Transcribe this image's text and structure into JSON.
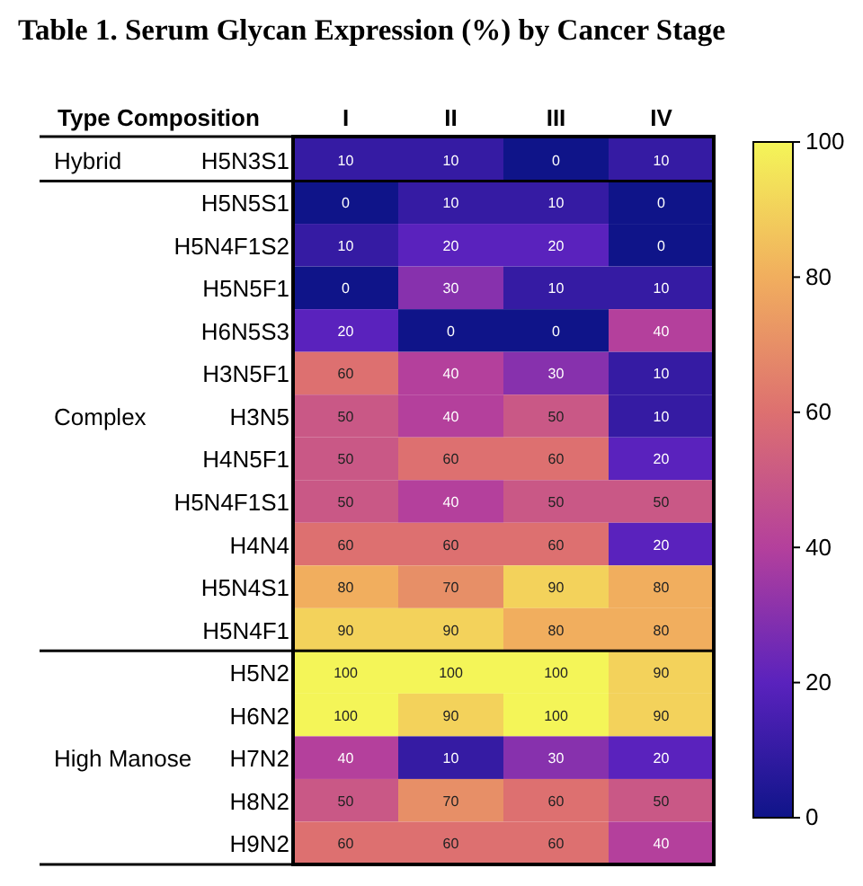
{
  "chart_data": {
    "type": "heatmap",
    "title": "Table 1. Serum Glycan Expression (%) by Cancer Stage",
    "ylabel": "Type Composition",
    "categories": [
      "I",
      "II",
      "III",
      "IV"
    ],
    "y_categories": [
      "H5N3S1",
      "H5N5S1",
      "H5N4F1S2",
      "H5N5F1",
      "H6N5S3",
      "H3N5F1",
      "H3N5",
      "H4N5F1",
      "H5N4F1S1",
      "H4N4",
      "H5N4S1",
      "H5N4F1",
      "H5N2",
      "H6N2",
      "H7N2",
      "H8N2",
      "H9N2"
    ],
    "cells": [
      [
        10,
        10,
        0,
        10
      ],
      [
        0,
        10,
        10,
        0
      ],
      [
        10,
        20,
        20,
        0
      ],
      [
        0,
        30,
        10,
        10
      ],
      [
        20,
        0,
        0,
        40
      ],
      [
        60,
        40,
        30,
        10
      ],
      [
        50,
        40,
        50,
        10
      ],
      [
        50,
        60,
        60,
        20
      ],
      [
        50,
        40,
        50,
        50
      ],
      [
        60,
        60,
        60,
        20
      ],
      [
        80,
        70,
        90,
        80
      ],
      [
        90,
        90,
        80,
        80
      ],
      [
        100,
        100,
        100,
        90
      ],
      [
        100,
        90,
        100,
        90
      ],
      [
        40,
        10,
        30,
        20
      ],
      [
        50,
        70,
        60,
        50
      ],
      [
        60,
        60,
        60,
        40
      ]
    ],
    "clim": [
      0,
      100
    ],
    "cticks": [
      0,
      20,
      40,
      60,
      80,
      100
    ],
    "data_labels": true,
    "y2_categories": [
      "Hybrid",
      null,
      null,
      null,
      null,
      null,
      "Complex",
      null,
      null,
      null,
      null,
      null,
      null,
      null,
      "High Manose",
      null,
      null
    ]
  }
}
